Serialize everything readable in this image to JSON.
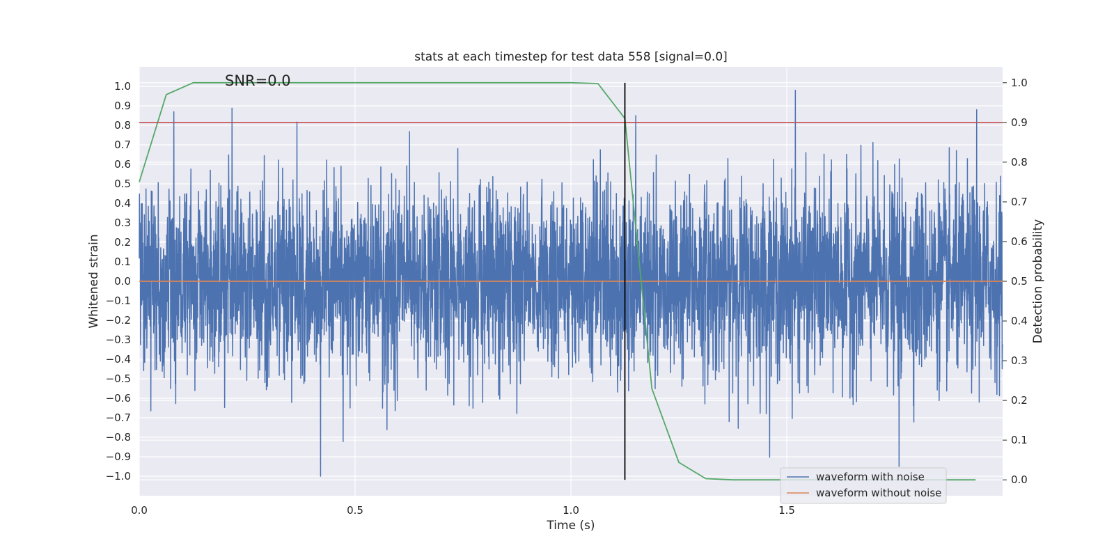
{
  "chart_data": {
    "type": "line",
    "title": "stats at each timestep for test data 558 [signal=0.0]",
    "xlabel": "Time (s)",
    "ylabel": "Whitened strain",
    "y2label": "Detection probability",
    "annotation": "SNR=0.0",
    "xlim": [
      0.0,
      2.0
    ],
    "ylim": [
      -1.1,
      1.1
    ],
    "y2lim": [
      -0.04,
      1.04
    ],
    "xticks": [
      "0.0",
      "0.5",
      "1.0",
      "1.5"
    ],
    "xtick_values": [
      0.0,
      0.5,
      1.0,
      1.5
    ],
    "yticks": [
      "1.0",
      "0.9",
      "0.8",
      "0.7",
      "0.6",
      "0.5",
      "0.4",
      "0.3",
      "0.2",
      "0.1",
      "0.0",
      "−0.1",
      "−0.2",
      "−0.3",
      "−0.4",
      "−0.5",
      "−0.6",
      "−0.7",
      "−0.8",
      "−0.9",
      "−1.0"
    ],
    "ytick_values": [
      1.0,
      0.9,
      0.8,
      0.7,
      0.6,
      0.5,
      0.4,
      0.3,
      0.2,
      0.1,
      0.0,
      -0.1,
      -0.2,
      -0.3,
      -0.4,
      -0.5,
      -0.6,
      -0.7,
      -0.8,
      -0.9,
      -1.0
    ],
    "y2ticks": [
      "1.0",
      "0.9",
      "0.8",
      "0.7",
      "0.6",
      "0.5",
      "0.4",
      "0.3",
      "0.2",
      "0.1",
      "0.0"
    ],
    "y2tick_values": [
      1.0,
      0.9,
      0.8,
      0.7,
      0.6,
      0.5,
      0.4,
      0.3,
      0.2,
      0.1,
      0.0
    ],
    "grid": true,
    "legend_position": "lower-right",
    "series": [
      {
        "name": "waveform with noise",
        "color": "#4c72b0",
        "axis": "left",
        "kind": "noise",
        "sample_count": 4096,
        "x_range": [
          0.0,
          2.0
        ],
        "amplitude_range": [
          -1.0,
          1.0
        ],
        "peaks": [
          {
            "x": 0.08,
            "y": 0.87
          },
          {
            "x": 0.42,
            "y": -1.0
          },
          {
            "x": 1.15,
            "y": 0.85
          },
          {
            "x": 1.52,
            "y": 0.98
          },
          {
            "x": 1.76,
            "y": -0.95
          },
          {
            "x": 1.94,
            "y": 0.88
          }
        ]
      },
      {
        "name": "waveform without noise",
        "color": "#dd8452",
        "axis": "left",
        "x": [
          0.0,
          2.0
        ],
        "y": [
          0.0,
          0.0
        ]
      },
      {
        "name": "",
        "color": "#55a868",
        "axis": "right",
        "x": [
          0.0,
          0.0625,
          0.125,
          0.1875,
          0.25,
          0.3125,
          0.375,
          0.4375,
          0.5,
          0.5625,
          0.625,
          0.6875,
          0.75,
          0.8125,
          0.875,
          0.9375,
          1.0,
          1.0625,
          1.125,
          1.1875,
          1.25,
          1.3125,
          1.375,
          1.4375,
          1.5,
          1.5625,
          1.625,
          1.6875,
          1.75,
          1.8125,
          1.875,
          1.9375
        ],
        "y": [
          0.75,
          0.97,
          1.0,
          1.0,
          1.0,
          1.0,
          1.0,
          1.0,
          1.0,
          1.0,
          1.0,
          1.0,
          1.0,
          1.0,
          1.0,
          1.0,
          1.0,
          0.998,
          0.91,
          0.23,
          0.044,
          0.003,
          0.0,
          0.0,
          0.0,
          0.0,
          0.0,
          0.0,
          0.0,
          0.0,
          0.0,
          0.0
        ]
      }
    ],
    "reference_lines": [
      {
        "orientation": "horizontal",
        "axis": "right",
        "value": 0.9,
        "color": "#c44e52"
      },
      {
        "orientation": "vertical",
        "value": 1.125,
        "y2_from": 0.0,
        "y2_to": 1.0,
        "color": "#000000"
      }
    ]
  }
}
